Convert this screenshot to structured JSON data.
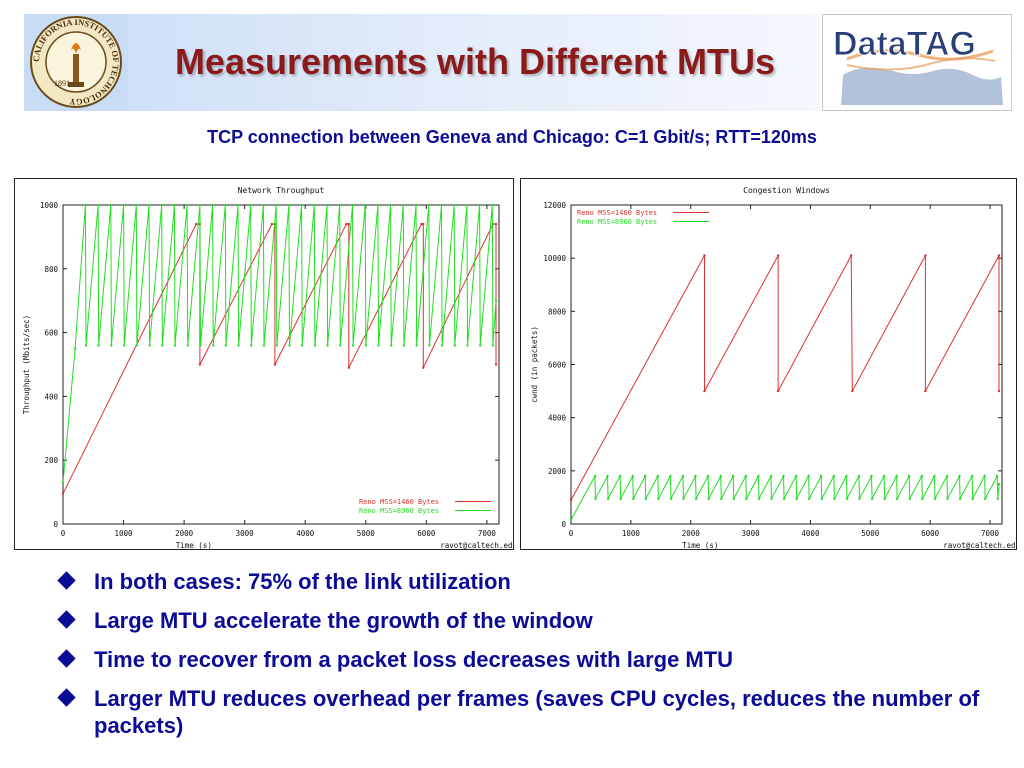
{
  "slide": {
    "title": "Measurements with Different MTUs",
    "subtitle": "TCP connection between Geneva and Chicago: C=1 Gbit/s; RTT=120ms",
    "left_logo": {
      "ring_text": "CALIFORNIA INSTITUTE OF TECHNOLOGY",
      "year": "1891",
      "icon": "torch-seal-icon"
    },
    "right_logo": {
      "text": "DataTAG",
      "icon": "world-map-icon"
    },
    "bullets": [
      "In both cases: 75% of the link utilization",
      "Large MTU accelerate the growth of the window",
      "Time to recover from a packet loss decreases with large MTU",
      "Larger MTU reduces overhead per frames (saves CPU cycles, reduces the number of packets)"
    ],
    "colors": {
      "title": "#8b1a1a",
      "text": "#0b0b96",
      "series_red": "#e03030",
      "series_green": "#22dd22"
    }
  },
  "chart_data": [
    {
      "type": "line",
      "title": "Network Throughput",
      "xlabel": "Time (s)",
      "ylabel": "Throughput (Mbits/sec)",
      "xlim": [
        0,
        7200
      ],
      "ylim": [
        0,
        1000
      ],
      "xticks": [
        "0",
        "1000",
        "2000",
        "3000",
        "4000",
        "5000",
        "6000",
        "7000"
      ],
      "yticks": [
        "0",
        "200",
        "400",
        "600",
        "800",
        "1000"
      ],
      "credit": "ravot@caltech.edu",
      "legend_position": "bottom-right",
      "series": [
        {
          "name": "Reno MSS=1460 Bytes",
          "color": "#e03030",
          "points": [
            [
              0,
              95
            ],
            [
              2200,
              940
            ],
            [
              2260,
              940
            ],
            [
              2260,
              500
            ],
            [
              3450,
              940
            ],
            [
              3500,
              940
            ],
            [
              3500,
              500
            ],
            [
              4680,
              940
            ],
            [
              4720,
              940
            ],
            [
              4720,
              490
            ],
            [
              5920,
              940
            ],
            [
              5950,
              940
            ],
            [
              5950,
              490
            ],
            [
              7100,
              940
            ],
            [
              7150,
              940
            ],
            [
              7150,
              500
            ]
          ]
        },
        {
          "name": "Reno MSS=8960 Bytes",
          "color": "#22dd22",
          "points": [
            [
              0,
              130
            ],
            [
              200,
              550
            ],
            [
              370,
              1000
            ],
            [
              380,
              560
            ],
            [
              580,
              1000
            ],
            [
              590,
              560
            ],
            [
              790,
              1000
            ],
            [
              800,
              560
            ],
            [
              1000,
              1000
            ],
            [
              1010,
              560
            ],
            [
              1210,
              1000
            ],
            [
              1220,
              560
            ],
            [
              1420,
              1000
            ],
            [
              1430,
              560
            ],
            [
              1630,
              1000
            ],
            [
              1640,
              560
            ],
            [
              1840,
              1000
            ],
            [
              1850,
              560
            ],
            [
              2050,
              1000
            ],
            [
              2060,
              560
            ],
            [
              2260,
              1000
            ],
            [
              2270,
              560
            ],
            [
              2470,
              1000
            ],
            [
              2480,
              560
            ],
            [
              2680,
              1000
            ],
            [
              2690,
              560
            ],
            [
              2890,
              1000
            ],
            [
              2900,
              560
            ],
            [
              3100,
              1000
            ],
            [
              3110,
              560
            ],
            [
              3310,
              1000
            ],
            [
              3320,
              560
            ],
            [
              3520,
              1000
            ],
            [
              3530,
              560
            ],
            [
              3730,
              1000
            ],
            [
              3740,
              560
            ],
            [
              3940,
              1000
            ],
            [
              3950,
              560
            ],
            [
              4150,
              1000
            ],
            [
              4160,
              560
            ],
            [
              4360,
              1000
            ],
            [
              4370,
              560
            ],
            [
              4570,
              1000
            ],
            [
              4580,
              560
            ],
            [
              4780,
              1000
            ],
            [
              4790,
              560
            ],
            [
              4990,
              1000
            ],
            [
              5000,
              560
            ],
            [
              5200,
              1000
            ],
            [
              5210,
              560
            ],
            [
              5410,
              1000
            ],
            [
              5420,
              560
            ],
            [
              5620,
              1000
            ],
            [
              5630,
              560
            ],
            [
              5830,
              1000
            ],
            [
              5840,
              560
            ],
            [
              6040,
              1000
            ],
            [
              6050,
              560
            ],
            [
              6250,
              1000
            ],
            [
              6260,
              560
            ],
            [
              6460,
              1000
            ],
            [
              6470,
              560
            ],
            [
              6670,
              1000
            ],
            [
              6680,
              560
            ],
            [
              6880,
              1000
            ],
            [
              6890,
              560
            ],
            [
              7090,
              1000
            ],
            [
              7100,
              560
            ],
            [
              7150,
              700
            ]
          ]
        }
      ]
    },
    {
      "type": "line",
      "title": "Congestion Windows",
      "xlabel": "Time (s)",
      "ylabel": "cwnd (in packets)",
      "xlim": [
        0,
        7200
      ],
      "ylim": [
        0,
        12000
      ],
      "xticks": [
        "0",
        "1000",
        "2000",
        "3000",
        "4000",
        "5000",
        "6000",
        "7000"
      ],
      "yticks": [
        "0",
        "2000",
        "4000",
        "6000",
        "8000",
        "10000",
        "12000"
      ],
      "credit": "ravot@caltech.edu",
      "legend_position": "top-left",
      "series": [
        {
          "name": "Reno MSS=1460 Bytes",
          "color": "#e03030",
          "points": [
            [
              0,
              900
            ],
            [
              2230,
              10100
            ],
            [
              2230,
              5000
            ],
            [
              3460,
              10100
            ],
            [
              3460,
              5000
            ],
            [
              4680,
              10100
            ],
            [
              4700,
              5000
            ],
            [
              5920,
              10100
            ],
            [
              5920,
              5000
            ],
            [
              7150,
              10100
            ],
            [
              7150,
              5000
            ]
          ]
        },
        {
          "name": "Reno MSS=8960 Bytes",
          "color": "#22dd22",
          "points": [
            [
              0,
              150
            ],
            [
              400,
              1800
            ],
            [
              410,
              950
            ],
            [
              610,
              1800
            ],
            [
              620,
              950
            ],
            [
              820,
              1800
            ],
            [
              830,
              950
            ],
            [
              1030,
              1800
            ],
            [
              1040,
              950
            ],
            [
              1240,
              1800
            ],
            [
              1250,
              950
            ],
            [
              1450,
              1800
            ],
            [
              1460,
              950
            ],
            [
              1660,
              1800
            ],
            [
              1670,
              950
            ],
            [
              1870,
              1800
            ],
            [
              1880,
              950
            ],
            [
              2080,
              1800
            ],
            [
              2090,
              950
            ],
            [
              2290,
              1800
            ],
            [
              2300,
              950
            ],
            [
              2500,
              1800
            ],
            [
              2510,
              950
            ],
            [
              2710,
              1800
            ],
            [
              2720,
              950
            ],
            [
              2920,
              1800
            ],
            [
              2930,
              950
            ],
            [
              3130,
              1800
            ],
            [
              3140,
              950
            ],
            [
              3340,
              1800
            ],
            [
              3350,
              950
            ],
            [
              3550,
              1800
            ],
            [
              3560,
              950
            ],
            [
              3760,
              1800
            ],
            [
              3770,
              950
            ],
            [
              3970,
              1800
            ],
            [
              3980,
              950
            ],
            [
              4180,
              1800
            ],
            [
              4190,
              950
            ],
            [
              4390,
              1800
            ],
            [
              4400,
              950
            ],
            [
              4600,
              1800
            ],
            [
              4610,
              950
            ],
            [
              4810,
              1800
            ],
            [
              4820,
              950
            ],
            [
              5020,
              1800
            ],
            [
              5030,
              950
            ],
            [
              5230,
              1800
            ],
            [
              5240,
              950
            ],
            [
              5440,
              1800
            ],
            [
              5450,
              950
            ],
            [
              5650,
              1800
            ],
            [
              5660,
              950
            ],
            [
              5860,
              1800
            ],
            [
              5870,
              950
            ],
            [
              6070,
              1800
            ],
            [
              6080,
              950
            ],
            [
              6280,
              1800
            ],
            [
              6290,
              950
            ],
            [
              6490,
              1800
            ],
            [
              6500,
              950
            ],
            [
              6700,
              1800
            ],
            [
              6710,
              950
            ],
            [
              6910,
              1800
            ],
            [
              6920,
              950
            ],
            [
              7120,
              1800
            ],
            [
              7130,
              950
            ],
            [
              7150,
              1500
            ]
          ]
        }
      ]
    }
  ]
}
